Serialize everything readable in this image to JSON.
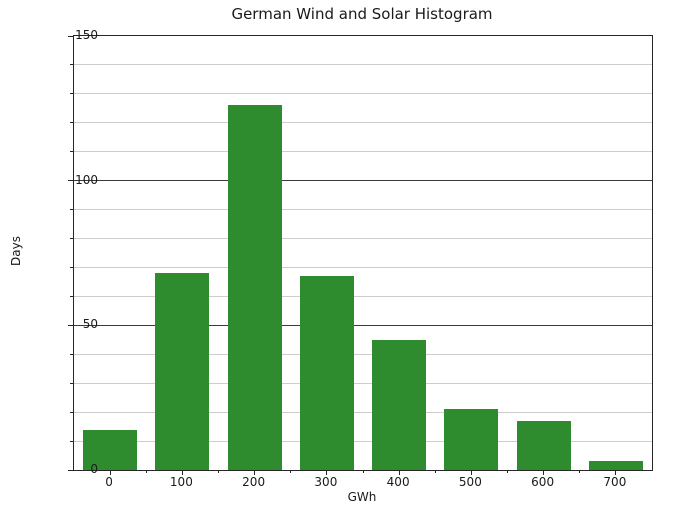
{
  "figure": {
    "title": "German Wind and Solar Histogram",
    "xlabel": "GWh",
    "ylabel": "Days"
  },
  "chart_data": {
    "type": "bar",
    "title": "German Wind and Solar Histogram",
    "xlabel": "GWh",
    "ylabel": "Days",
    "categories": [
      0,
      100,
      200,
      300,
      400,
      500,
      600,
      700
    ],
    "values": [
      14,
      68,
      126,
      67,
      45,
      21,
      17,
      3
    ],
    "xlim": [
      -50,
      750
    ],
    "ylim": [
      0,
      150
    ],
    "yticks_major": [
      0,
      50,
      100,
      150
    ],
    "ytick_minor_step": 10,
    "xticks_minor": [
      50,
      150,
      250,
      350,
      450,
      550,
      650
    ],
    "bar_width_x": 75,
    "bar_color": "#2e8b2e",
    "grid": "horizontal",
    "grid_major_color": "#3b3b3b",
    "grid_minor_color": "#cdcdcd",
    "axis_color": "#262626",
    "legend_position": "none"
  }
}
